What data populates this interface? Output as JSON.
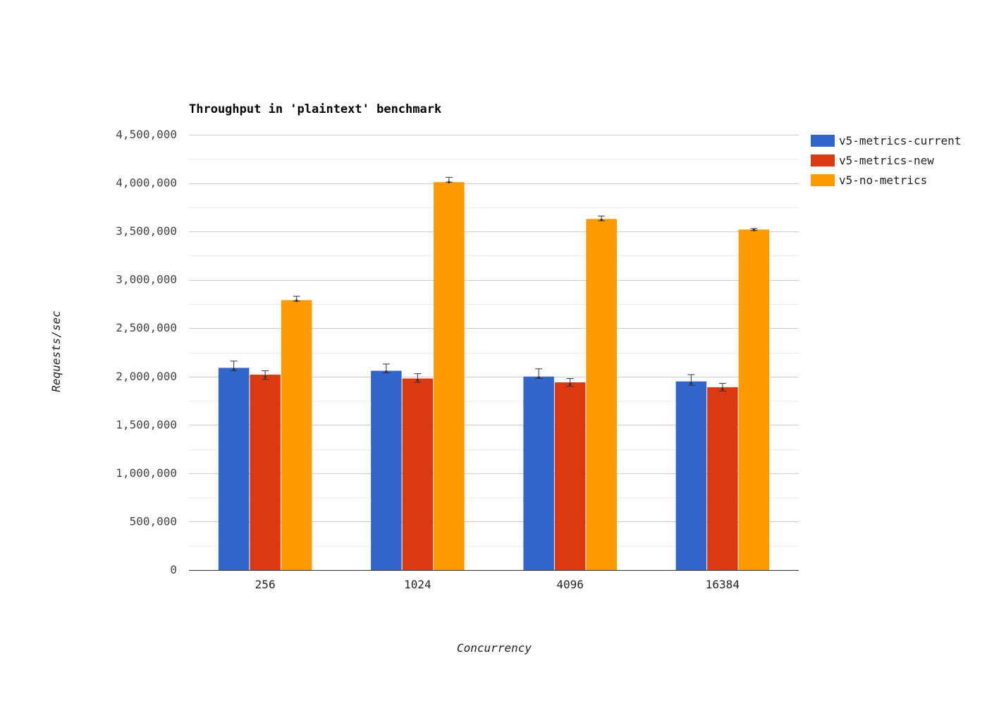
{
  "chart_data": {
    "type": "bar",
    "title": "Throughput in 'plaintext' benchmark",
    "xlabel": "Concurrency",
    "ylabel": "Requests/sec",
    "categories": [
      "256",
      "1024",
      "4096",
      "16384"
    ],
    "ylim": [
      0,
      4500000
    ],
    "y_ticks": [
      0,
      500000,
      1000000,
      1500000,
      2000000,
      2500000,
      3000000,
      3500000,
      4000000,
      4500000
    ],
    "y_tick_labels": [
      "0",
      "500,000",
      "1,000,000",
      "1,500,000",
      "2,000,000",
      "2,500,000",
      "3,000,000",
      "3,500,000",
      "4,000,000",
      "4,500,000"
    ],
    "grid": true,
    "legend_position": "right",
    "series": [
      {
        "name": "v5-metrics-current",
        "color": "#3366cc",
        "values": [
          2090000,
          2060000,
          2000000,
          1950000
        ],
        "error_low": [
          2060000,
          2040000,
          1980000,
          1910000
        ],
        "error_high": [
          2160000,
          2130000,
          2080000,
          2020000
        ]
      },
      {
        "name": "v5-metrics-new",
        "color": "#dc3912",
        "values": [
          2020000,
          1980000,
          1940000,
          1890000
        ],
        "error_low": [
          1970000,
          1940000,
          1900000,
          1850000
        ],
        "error_high": [
          2060000,
          2030000,
          1980000,
          1930000
        ]
      },
      {
        "name": "v5-no-metrics",
        "color": "#ff9900",
        "values": [
          2790000,
          4010000,
          3630000,
          3520000
        ],
        "error_low": [
          2780000,
          4010000,
          3610000,
          3510000
        ],
        "error_high": [
          2830000,
          4060000,
          3660000,
          3530000
        ]
      }
    ]
  }
}
